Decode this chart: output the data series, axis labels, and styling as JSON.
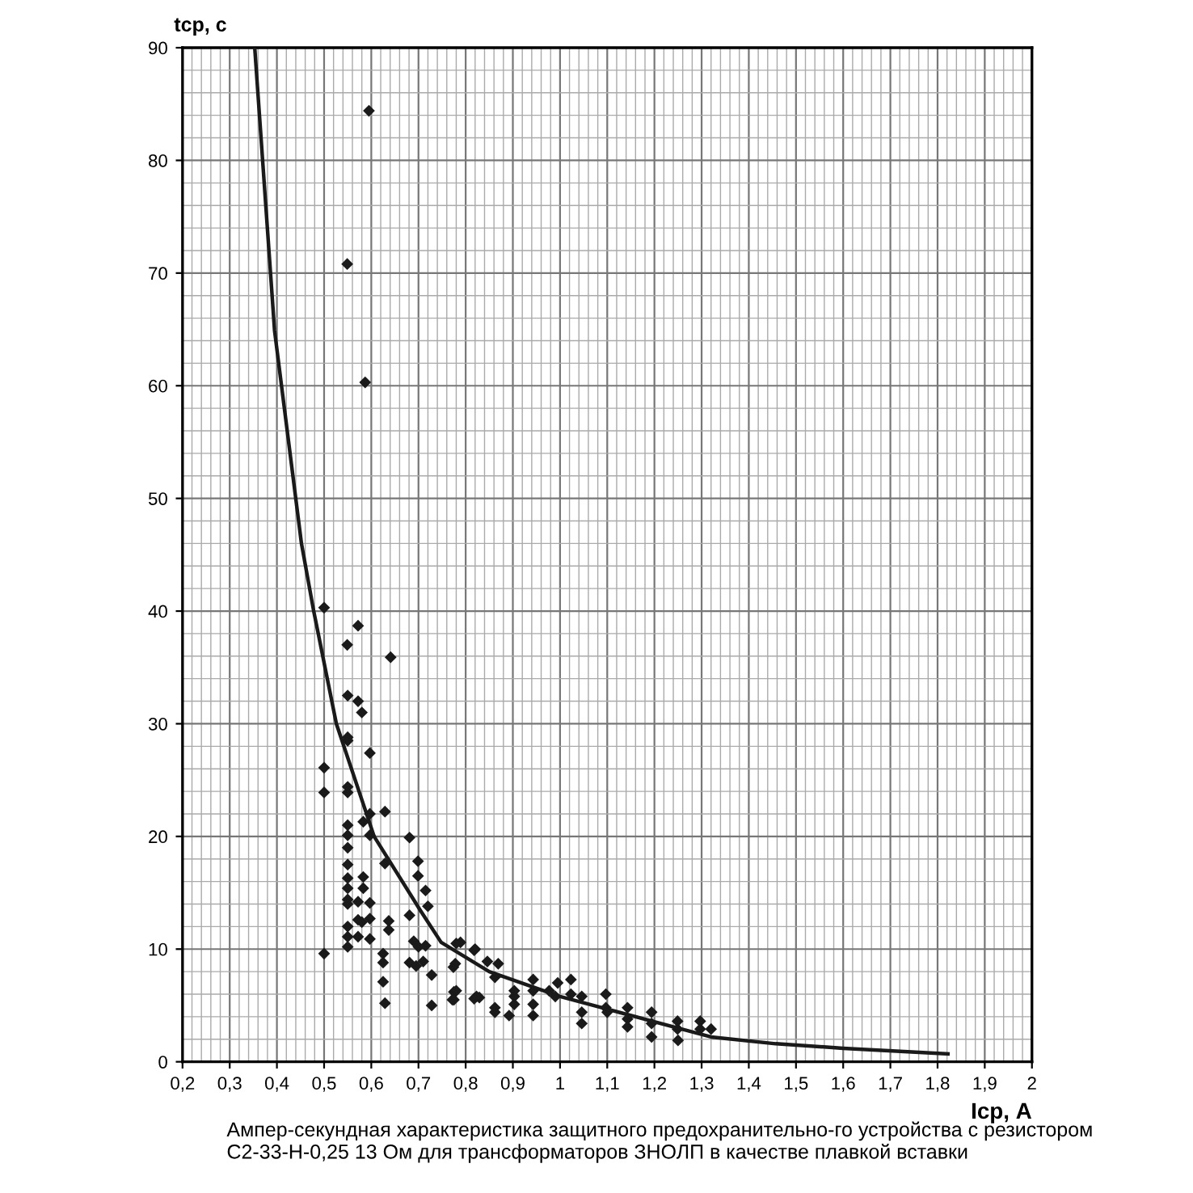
{
  "chart_data": {
    "type": "scatter",
    "xlabel": "Iср, А",
    "ylabel": "tср, с",
    "annotations": [
      "Ампер-секундная характеристика защитного предохранительно-го устройства с резистором С2-33-Н-0,25 13 Ом для трансформаторов ЗНОЛП в качестве плавкой вставки"
    ],
    "xlim": [
      0.2,
      2.0
    ],
    "xticks": [
      {
        "value": 0.2,
        "label": "0,2"
      },
      {
        "value": 0.3,
        "label": "0,3"
      },
      {
        "value": 0.4,
        "label": "0,4"
      },
      {
        "value": 0.5,
        "label": "0,5"
      },
      {
        "value": 0.6,
        "label": "0,6"
      },
      {
        "value": 0.7,
        "label": "0,7"
      },
      {
        "value": 0.8,
        "label": "0,8"
      },
      {
        "value": 0.9,
        "label": "0,9"
      },
      1,
      {
        "value": 1.1,
        "label": "1,1"
      },
      {
        "value": 1.2,
        "label": "1,2"
      },
      {
        "value": 1.3,
        "label": "1,3"
      },
      {
        "value": 1.4,
        "label": "1,4"
      },
      {
        "value": 1.5,
        "label": "1,5"
      },
      {
        "value": 1.6,
        "label": "1,6"
      },
      {
        "value": 1.7,
        "label": "1,7"
      },
      {
        "value": 1.8,
        "label": "1,8"
      },
      {
        "value": 1.9,
        "label": "1,9"
      },
      2
    ],
    "ylim": [
      0,
      90
    ],
    "yticks": [
      0,
      10,
      20,
      30,
      40,
      50,
      60,
      70,
      80,
      90
    ],
    "grid": true,
    "marker": "diamond",
    "series": [
      {
        "color": "#1a1a1a",
        "x": [
          0.5,
          0.5,
          0.5,
          0.5,
          0.549,
          0.572,
          0.641,
          0.55,
          0.572,
          0.58,
          0.55,
          0.55,
          0.597,
          0.55,
          0.55,
          0.55,
          0.55,
          0.55,
          0.55,
          0.55,
          0.55,
          0.55,
          0.55,
          0.55,
          0.55,
          0.55,
          0.572,
          0.572,
          0.58,
          0.572,
          0.583,
          0.583,
          0.583,
          0.597,
          0.597,
          0.597,
          0.597,
          0.597,
          0.629,
          0.629,
          0.637,
          0.637,
          0.625,
          0.625,
          0.625,
          0.629,
          0.681,
          0.699,
          0.699,
          0.715,
          0.72,
          0.681,
          0.69,
          0.7,
          0.681,
          0.695,
          0.71,
          0.728,
          0.728,
          0.715,
          0.772,
          0.775,
          0.774,
          0.78,
          0.82,
          0.829,
          0.818,
          0.789,
          0.818,
          0.778,
          0.78,
          0.775,
          0.823,
          0.846,
          0.869,
          0.862,
          0.862,
          0.862,
          0.892,
          0.903,
          0.903,
          0.903,
          0.943,
          0.943,
          0.943,
          0.943,
          0.977,
          0.995,
          0.99,
          1.023,
          1.023,
          1.046,
          1.046,
          1.046,
          1.097,
          1.097,
          1.1,
          1.143,
          1.143,
          1.143,
          1.194,
          1.194,
          1.194,
          1.249,
          1.249,
          1.25,
          1.297,
          1.297,
          1.32,
          0.595,
          0.549,
          0.587
        ],
        "values": [
          40.3,
          26.1,
          23.9,
          9.6,
          37.0,
          38.7,
          35.9,
          32.5,
          32.0,
          31.0,
          28.8,
          28.5,
          27.4,
          24.4,
          23.9,
          21.0,
          20.1,
          19.0,
          17.5,
          16.3,
          15.4,
          14.4,
          14.0,
          12.0,
          11.1,
          10.2,
          14.2,
          12.6,
          12.4,
          11.1,
          21.3,
          16.4,
          15.4,
          22.0,
          20.1,
          14.1,
          12.7,
          10.9,
          22.2,
          17.6,
          12.5,
          11.7,
          9.6,
          8.8,
          7.1,
          5.2,
          19.9,
          17.8,
          16.5,
          15.2,
          13.8,
          13.0,
          10.7,
          10.2,
          8.8,
          8.5,
          8.9,
          7.7,
          5.0,
          10.3,
          5.5,
          6.2,
          8.4,
          10.5,
          10.0,
          5.7,
          5.6,
          10.6,
          9.9,
          8.7,
          6.3,
          5.5,
          5.8,
          8.9,
          8.7,
          7.5,
          4.8,
          4.4,
          4.1,
          6.3,
          5.8,
          5.1,
          7.3,
          6.3,
          5.1,
          4.1,
          6.3,
          7.0,
          5.8,
          7.3,
          6.0,
          5.8,
          4.4,
          3.4,
          6.0,
          4.8,
          4.4,
          4.8,
          3.8,
          3.1,
          4.4,
          3.4,
          2.2,
          3.6,
          2.9,
          1.9,
          3.6,
          2.9,
          2.9,
          84.4,
          70.8,
          60.3
        ]
      },
      {
        "type": "line",
        "color": "#1a1a1a",
        "marker": "none",
        "x": [
          0.353,
          0.395,
          0.452,
          0.478,
          0.526,
          0.606,
          0.703,
          0.748,
          0.85,
          1.0,
          1.08,
          1.32,
          1.457,
          1.6,
          1.822
        ],
        "values": [
          90,
          64.9,
          46,
          40,
          30,
          20,
          13.5,
          10.6,
          8.0,
          5.8,
          4.9,
          2.2,
          1.6,
          1.2,
          0.7
        ]
      }
    ]
  }
}
